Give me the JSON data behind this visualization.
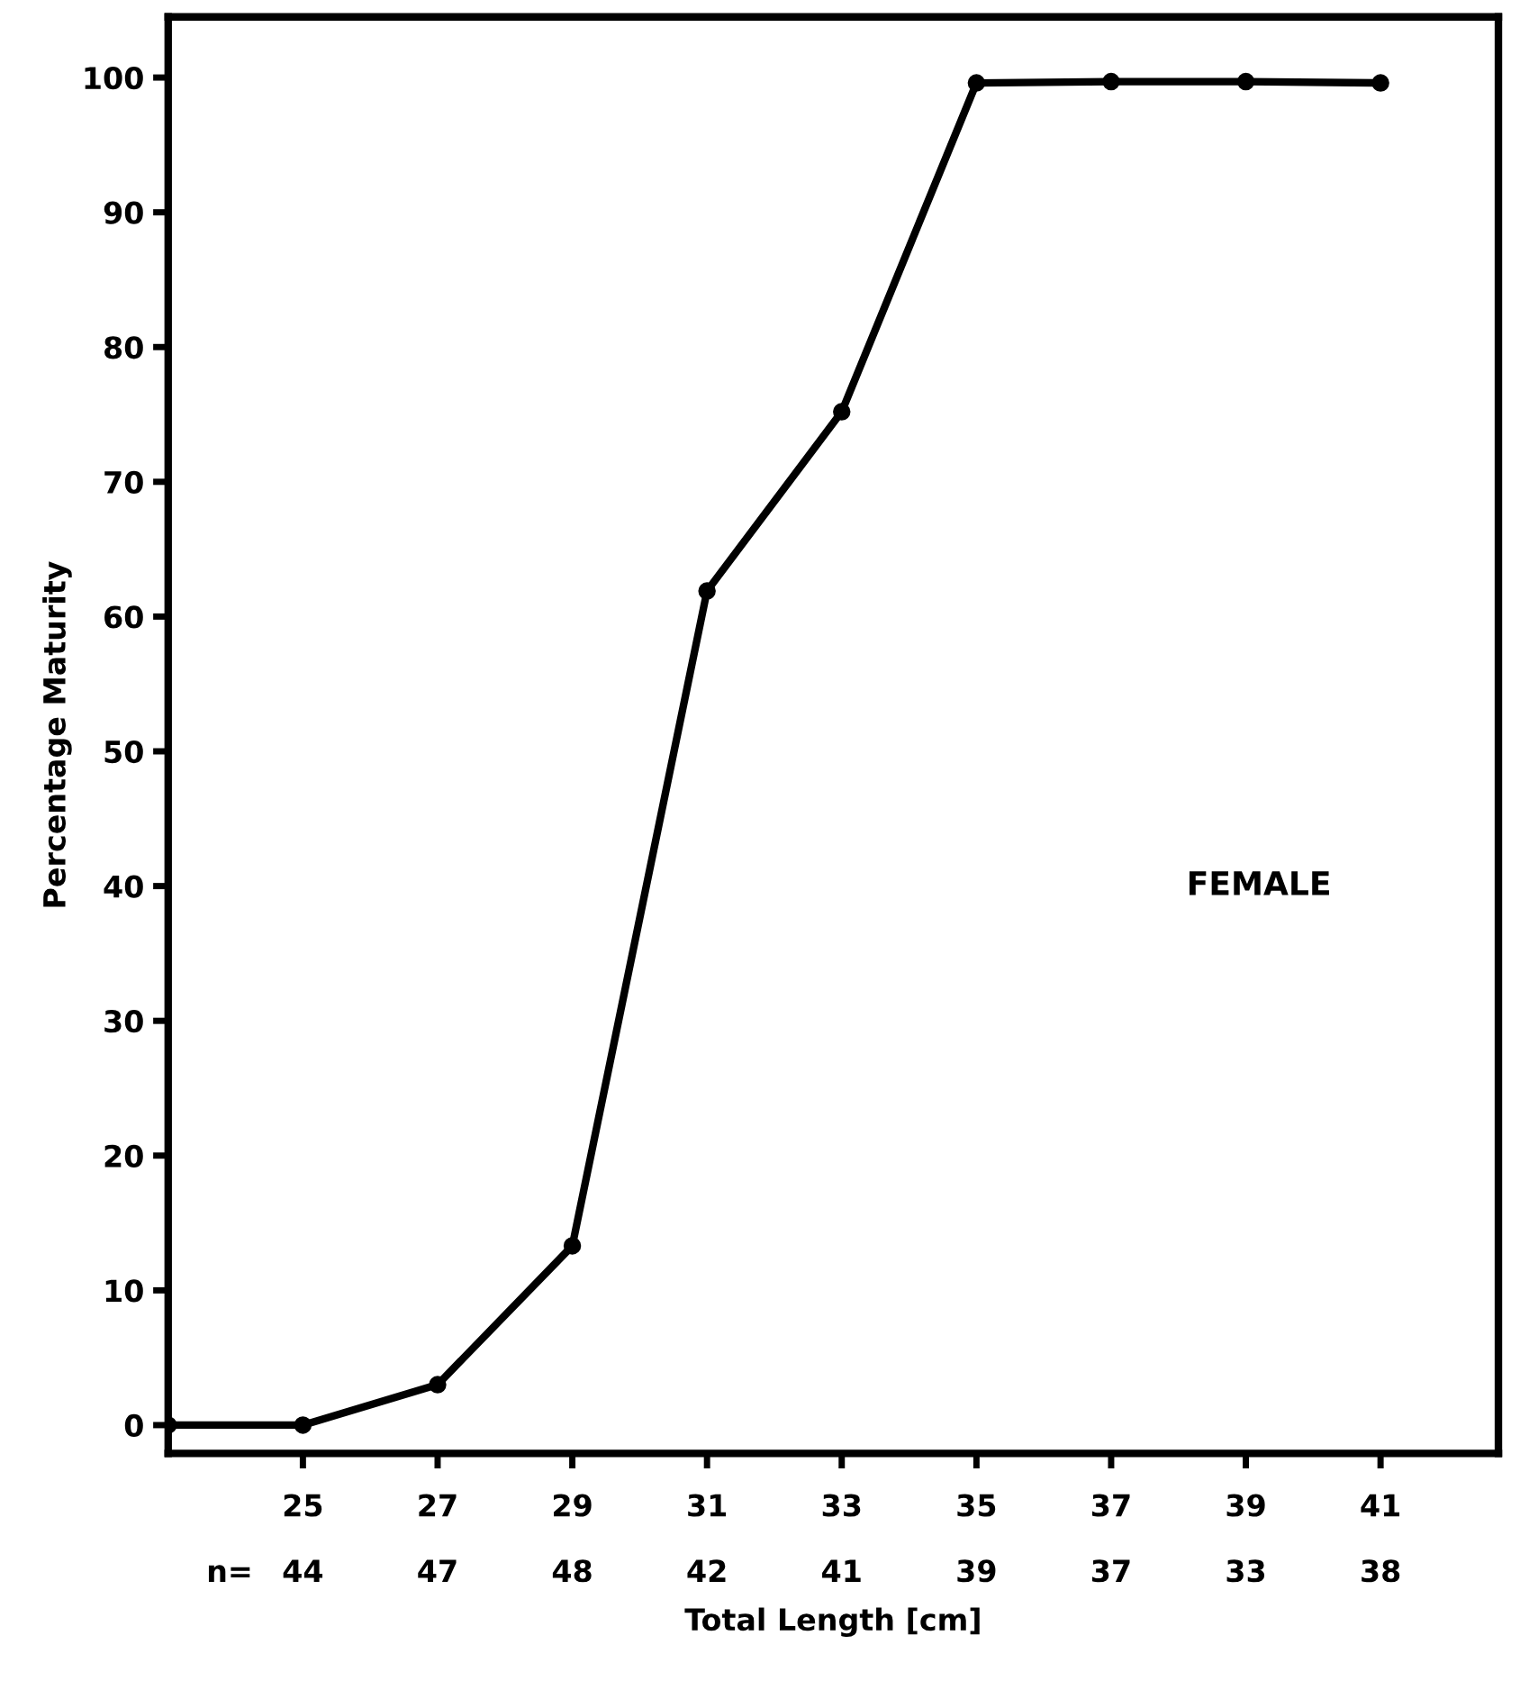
{
  "chart_data": {
    "type": "line",
    "xlabel": "Total Length [cm]",
    "ylabel": "Percentage Maturity",
    "x": [
      23,
      25,
      27,
      29,
      31,
      33,
      35,
      37,
      39,
      41
    ],
    "series": [
      {
        "color": "#000000",
        "values": [
          0,
          0,
          3,
          13.3,
          61.9,
          75.2,
          99.6,
          99.7,
          99.7,
          99.6
        ]
      }
    ],
    "xlim": [
      23,
      42.75
    ],
    "xticks": [
      25,
      27,
      29,
      31,
      33,
      35,
      37,
      39,
      41
    ],
    "ylim": [
      -2.1,
      104.5
    ],
    "yticks": [
      0,
      10,
      20,
      30,
      40,
      50,
      60,
      70,
      80,
      90,
      100
    ],
    "marker": "circle",
    "line_style": "solid",
    "grid": false,
    "legend": false,
    "annotations": [
      "FEMALE",
      "n=",
      "44",
      "47",
      "48",
      "42",
      "41",
      "39",
      "37",
      "33",
      "38"
    ]
  }
}
